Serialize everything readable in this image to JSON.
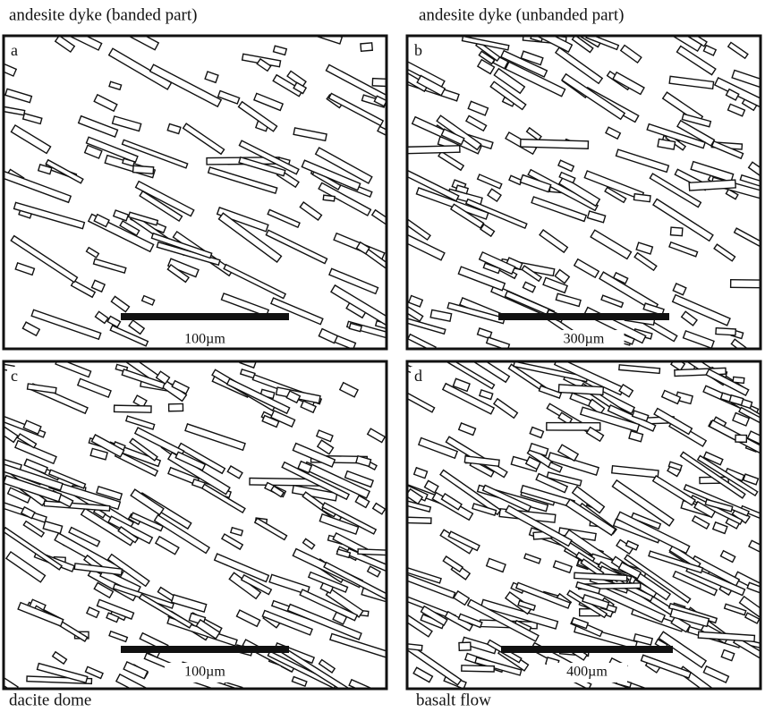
{
  "panels": [
    {
      "caption": "andesite dyke (banded part)",
      "letter": "a",
      "scale": "100µm"
    },
    {
      "caption": "andesite dyke (unbanded part)",
      "letter": "b",
      "scale": "300µm"
    },
    {
      "caption": "dacite dome",
      "letter": "c",
      "scale": "100µm"
    },
    {
      "caption": "basalt flow",
      "letter": "d",
      "scale": "400µm"
    }
  ]
}
